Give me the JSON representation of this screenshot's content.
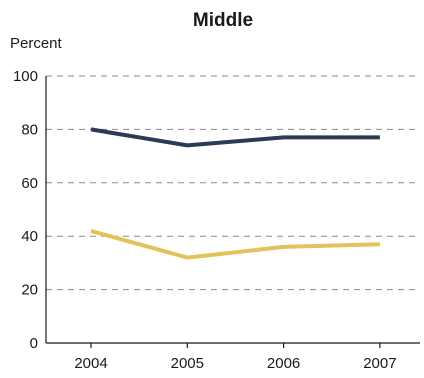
{
  "chart_data": {
    "type": "line",
    "title": "Middle",
    "ylabel": "Percent",
    "xlabel": "",
    "categories": [
      "2004",
      "2005",
      "2006",
      "2007"
    ],
    "ylim": [
      0,
      100
    ],
    "yticks": [
      0,
      20,
      40,
      60,
      80,
      100
    ],
    "grid": true,
    "series": [
      {
        "values": [
          80,
          74,
          77,
          77
        ],
        "color": "#2b3a55"
      },
      {
        "values": [
          42,
          32,
          36,
          37
        ],
        "color": "#e2c25a"
      }
    ]
  }
}
